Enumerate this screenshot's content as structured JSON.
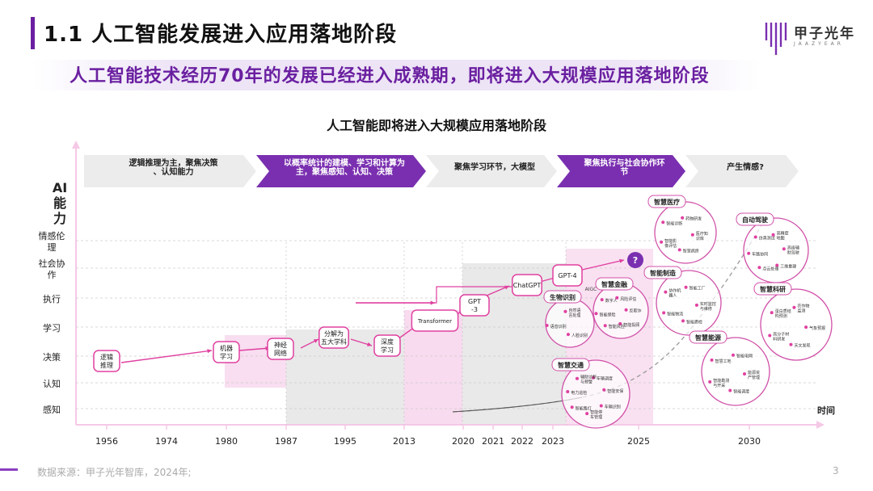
{
  "header": {
    "page_title": "1.1 人工智能发展进入应用落地阶段",
    "subtitle": "人工智能技术经历70年的发展已经进入成熟期，即将进入大规模应用落地阶段",
    "logo_name": "甲子光年",
    "logo_sub": "JAAZYEAR"
  },
  "chart_data": {
    "type": "diagram-timeline",
    "title": "人工智能即将进入大规模应用落地阶段",
    "ylabel": "AI能力",
    "xlabel": "时间",
    "y_levels": [
      "感知",
      "认知",
      "决策",
      "学习",
      "执行",
      "社会协作",
      "情感伦理"
    ],
    "x_ticks": [
      "1956",
      "1974",
      "1980",
      "1987",
      "1995",
      "2013",
      "2020",
      "2021",
      "2022",
      "2023",
      "2025",
      "2030"
    ],
    "phases": [
      {
        "label": "逻辑推理为主，聚焦决策、认知能力",
        "highlight": false
      },
      {
        "label": "以概率统计的建模、学习和计算为主，聚焦感知、认知、决策",
        "highlight": true
      },
      {
        "label": "聚焦学习环节，大模型",
        "highlight": false
      },
      {
        "label": "聚焦执行与社会协作环节",
        "highlight": true
      },
      {
        "label": "产生情感?",
        "highlight": false
      }
    ],
    "milestones": [
      {
        "label": "逻辑推理"
      },
      {
        "label": "机器学习"
      },
      {
        "label": "神经网络"
      },
      {
        "label": "分解为五大学科"
      },
      {
        "label": "深度学习"
      },
      {
        "label": "Transformer"
      },
      {
        "label": "GPT-3"
      },
      {
        "label": "ChatGPT"
      },
      {
        "label": "GPT-4"
      },
      {
        "label": "?"
      }
    ],
    "labels_misc": {
      "aigc": "AIGC"
    },
    "clusters": [
      {
        "title": "生物识别",
        "items": [
          "自然语言处理",
          "人脸识别",
          "语音识别"
        ]
      },
      {
        "title": "智慧金融",
        "items": [
          "风险评估",
          "反欺诈",
          "智能投顾",
          "智能风控",
          "智能保险",
          "数字人"
        ]
      },
      {
        "title": "智慧交通",
        "items": [
          "车辆调度",
          "智能安保",
          "车辆识别",
          "智能停车管理",
          "智能路灯",
          "电力巡检",
          "辅助诊断与预警"
        ]
      },
      {
        "title": "智慧医疗",
        "items": [
          "药物研发",
          "医疗知识库",
          "智慧病房",
          "智能影像评估",
          "智能诊断"
        ]
      },
      {
        "title": "智能制造",
        "items": [
          "智能工厂",
          "实时监控与维修",
          "智能质检",
          "智能物流",
          "协作机器人"
        ]
      },
      {
        "title": "自动驾驶",
        "items": [
          "高精度地图",
          "高级辅助驾驶",
          "三维重建",
          "点云处理",
          "车路协同",
          "仿真测试"
        ]
      },
      {
        "title": "智慧科研",
        "items": [
          "农作物监测",
          "气象预报",
          "天文发现",
          "高分子材料研发",
          "蛋白质结构预测"
        ]
      },
      {
        "title": "智慧能源",
        "items": [
          "智能电网",
          "能源资产管理",
          "智能调度",
          "智能勘测与开采",
          "智慧工地"
        ]
      }
    ]
  },
  "footer": {
    "source": "数据来源：甲子光年智库，2024年;",
    "page": "3"
  }
}
